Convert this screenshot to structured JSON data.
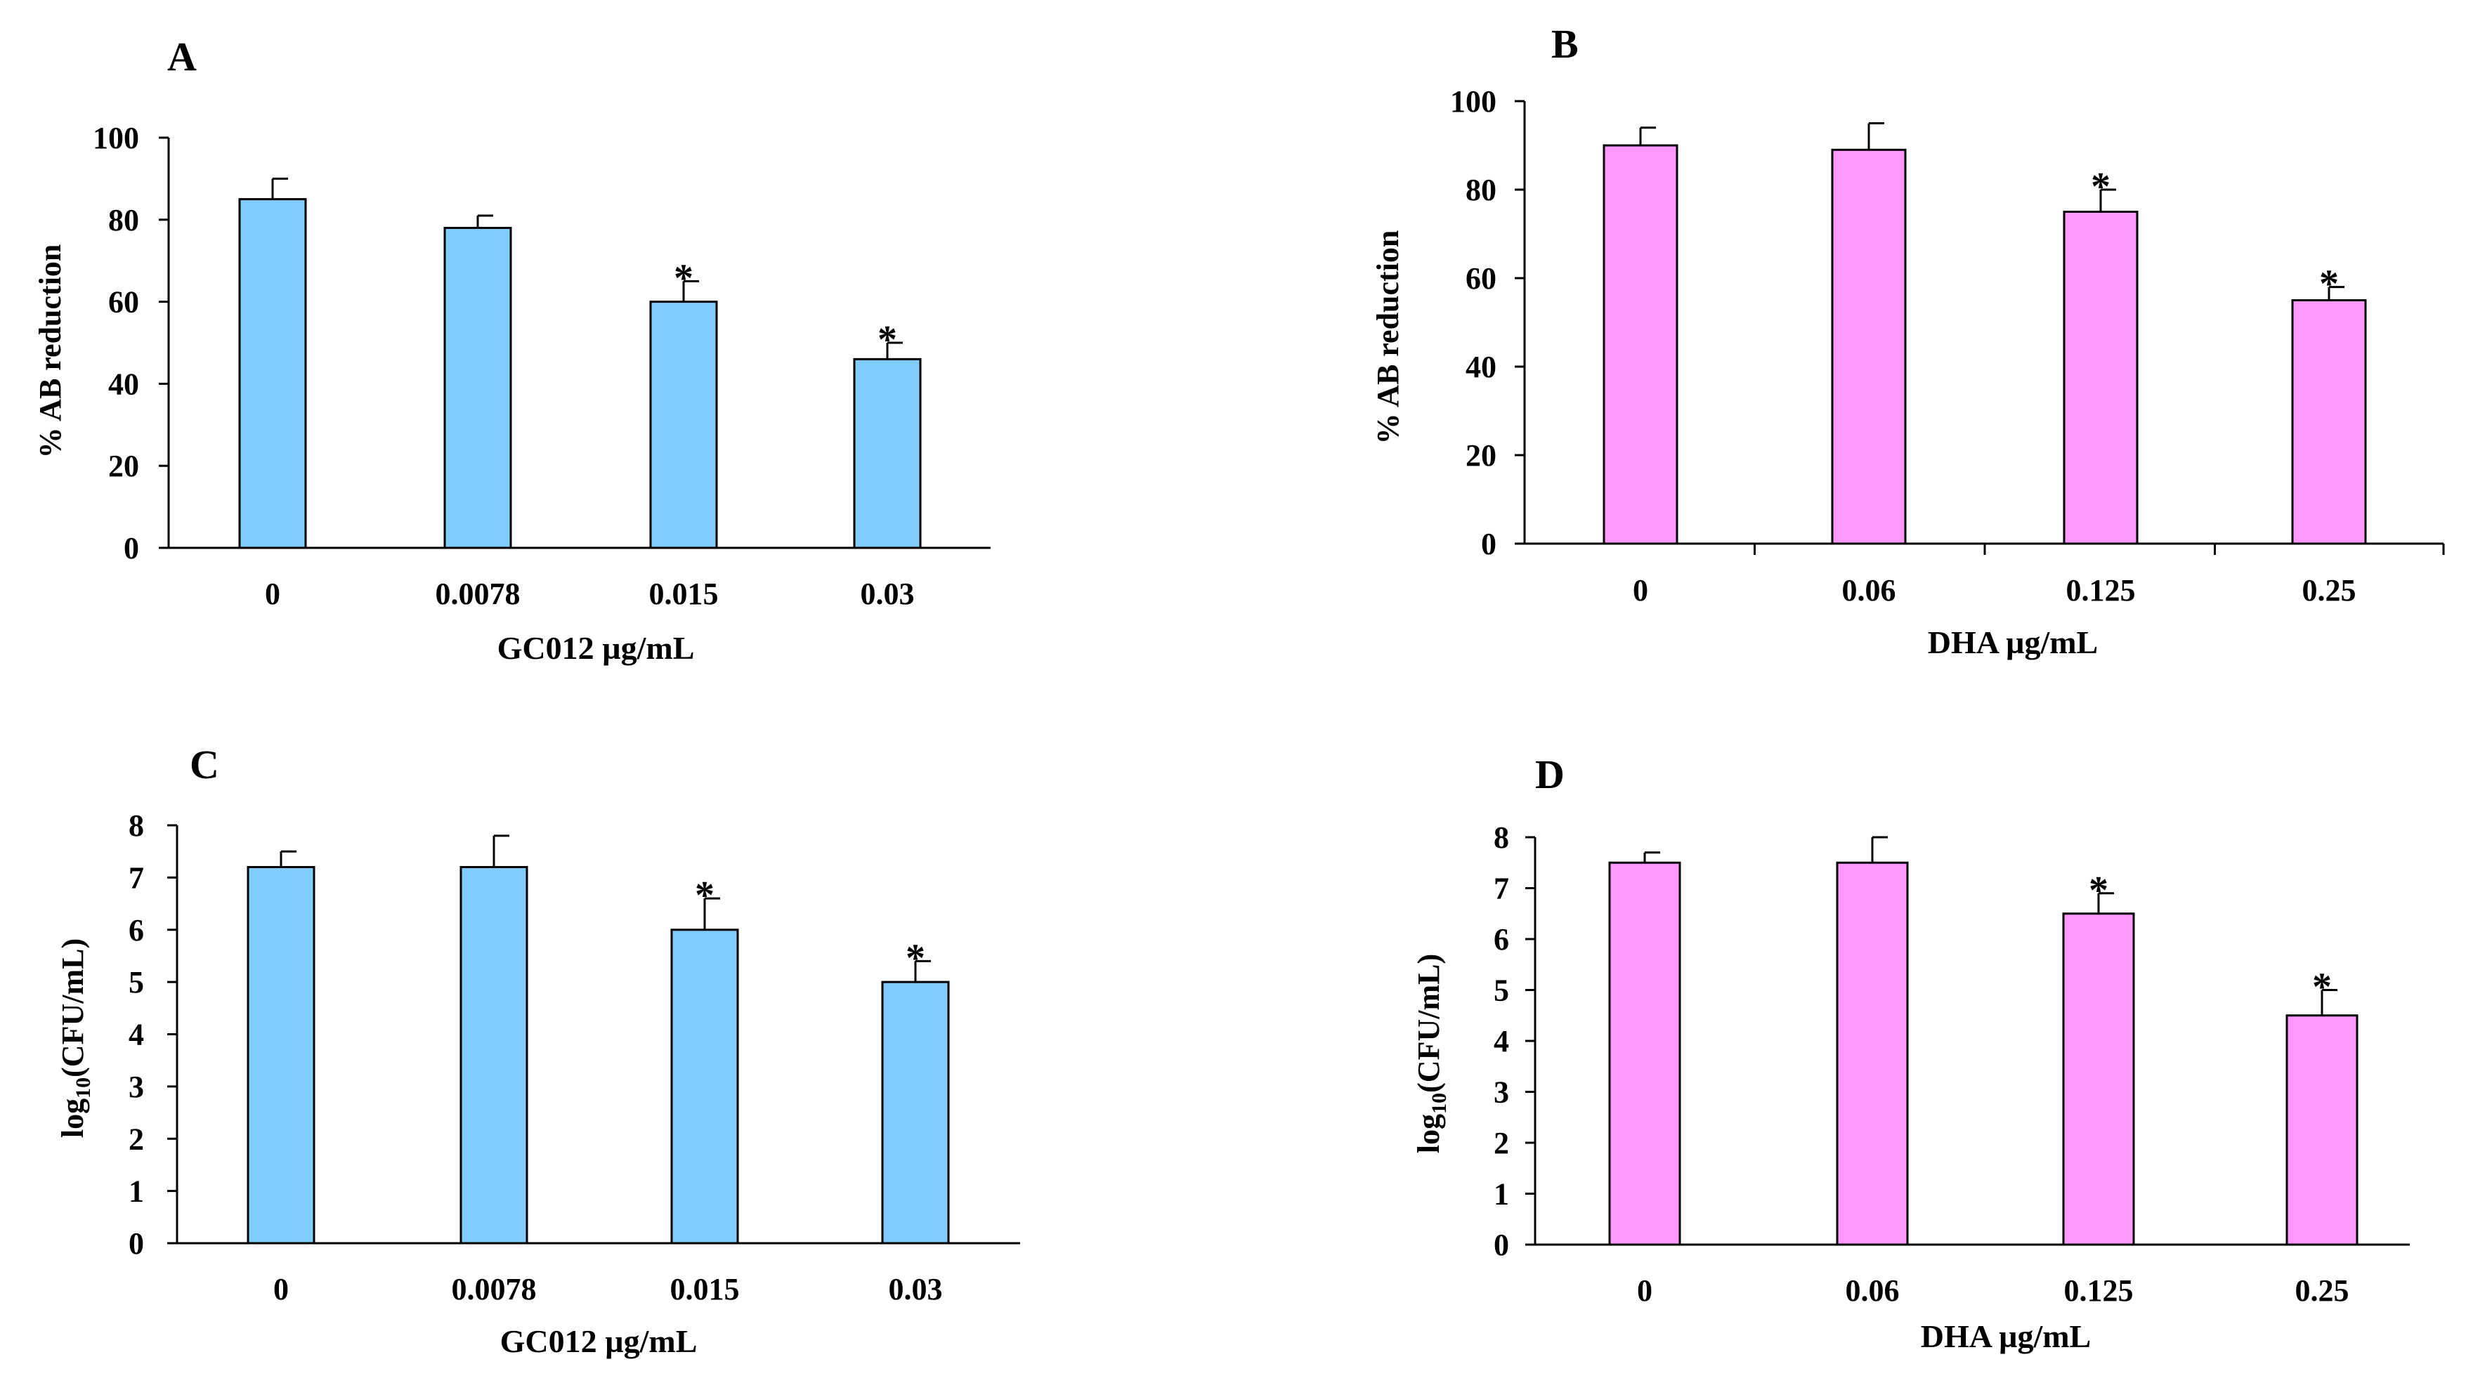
{
  "chart_data": [
    {
      "type": "bar",
      "panel": "A",
      "categories": [
        "0",
        "0.0078",
        "0.015",
        "0.03"
      ],
      "values": [
        85,
        78,
        60,
        46
      ],
      "errors": [
        5,
        3,
        5,
        4
      ],
      "significant": [
        false,
        false,
        true,
        true
      ],
      "significance_marker": "*",
      "xlabel": "GC012 µg/mL",
      "ylabel": "% AB reduction",
      "ylim": [
        0,
        100
      ],
      "yticks": [
        0,
        20,
        40,
        60,
        80,
        100
      ],
      "bar_color": "#80CCFF",
      "category_ticks": false
    },
    {
      "type": "bar",
      "panel": "B",
      "categories": [
        "0",
        "0.06",
        "0.125",
        "0.25"
      ],
      "values": [
        90,
        89,
        75,
        55
      ],
      "errors": [
        4,
        6,
        5,
        3
      ],
      "significant": [
        false,
        false,
        true,
        true
      ],
      "significance_marker": "*",
      "xlabel": "DHA µg/mL",
      "ylabel": "% AB reduction",
      "ylim": [
        0,
        100
      ],
      "yticks": [
        0,
        20,
        40,
        60,
        80,
        100
      ],
      "bar_color": "#FF99FF",
      "category_ticks": true
    },
    {
      "type": "bar",
      "panel": "C",
      "categories": [
        "0",
        "0.0078",
        "0.015",
        "0.03"
      ],
      "values": [
        7.2,
        7.2,
        6.0,
        5.0
      ],
      "errors": [
        0.3,
        0.6,
        0.6,
        0.4
      ],
      "significant": [
        false,
        false,
        true,
        true
      ],
      "significance_marker": "*",
      "xlabel": "GC012 µg/mL",
      "ylabel": "log10(CFU/mL)",
      "ylim": [
        0,
        8
      ],
      "yticks": [
        0,
        1,
        2,
        3,
        4,
        5,
        6,
        7,
        8
      ],
      "bar_color": "#80CCFF",
      "category_ticks": false
    },
    {
      "type": "bar",
      "panel": "D",
      "categories": [
        "0",
        "0.06",
        "0.125",
        "0.25"
      ],
      "values": [
        7.5,
        7.5,
        6.5,
        4.5
      ],
      "errors": [
        0.2,
        0.5,
        0.4,
        0.5
      ],
      "significant": [
        false,
        false,
        true,
        true
      ],
      "significance_marker": "*",
      "xlabel": "DHA µg/mL",
      "ylabel": "log10(CFU/mL)",
      "ylim": [
        0,
        8
      ],
      "yticks": [
        0,
        1,
        2,
        3,
        4,
        5,
        6,
        7,
        8
      ],
      "bar_color": "#FF99FF",
      "category_ticks": false
    }
  ]
}
